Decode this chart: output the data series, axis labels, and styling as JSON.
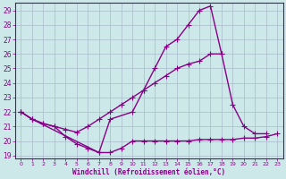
{
  "xlabel": "Windchill (Refroidissement éolien,°C)",
  "x": [
    0,
    1,
    2,
    3,
    4,
    5,
    6,
    7,
    8,
    9,
    10,
    11,
    12,
    13,
    14,
    15,
    16,
    17,
    18,
    19,
    20,
    21,
    22,
    23
  ],
  "line1": [
    22.0,
    21.5,
    null,
    null,
    null,
    null,
    null,
    19.2,
    21.5,
    null,
    22.0,
    23.5,
    25.0,
    26.5,
    27.0,
    28.0,
    29.0,
    29.3,
    26.0,
    null,
    null,
    null,
    null,
    null
  ],
  "line2": [
    22.0,
    21.5,
    21.2,
    21.0,
    20.8,
    20.6,
    21.0,
    21.5,
    22.0,
    22.5,
    23.0,
    23.5,
    24.0,
    24.5,
    25.0,
    25.3,
    25.5,
    26.0,
    26.0,
    22.5,
    21.0,
    20.5,
    20.5,
    null
  ],
  "line3": [
    22.0,
    21.5,
    21.2,
    21.0,
    20.3,
    19.8,
    19.5,
    19.2,
    19.2,
    19.5,
    20.0,
    20.0,
    20.0,
    20.0,
    20.0,
    20.0,
    20.1,
    20.1,
    20.1,
    20.1,
    20.2,
    20.2,
    20.3,
    20.5
  ],
  "line_color": "#880088",
  "bg_color": "#cce8e8",
  "grid_color": "#aabbcc",
  "ylim": [
    19,
    29.5
  ],
  "yticks": [
    19,
    20,
    21,
    22,
    23,
    24,
    25,
    26,
    27,
    28,
    29
  ],
  "xticks": [
    0,
    1,
    2,
    3,
    4,
    5,
    6,
    7,
    8,
    9,
    10,
    11,
    12,
    13,
    14,
    15,
    16,
    17,
    18,
    19,
    20,
    21,
    22,
    23
  ],
  "markersize": 2.5,
  "linewidth": 1.0
}
